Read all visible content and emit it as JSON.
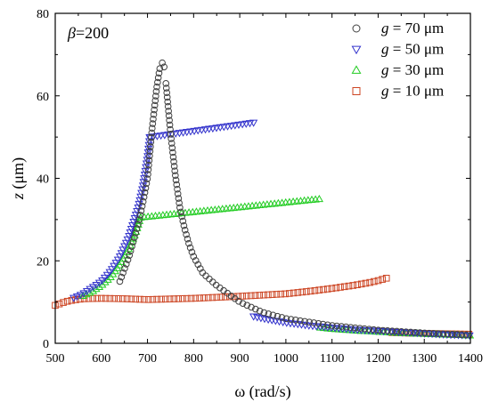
{
  "chart_data": {
    "type": "scatter",
    "annotation": {
      "symbol": "β",
      "text": "=200"
    },
    "xlabel": "ω (rad/s)",
    "ylabel": {
      "var": "z",
      "unit": " (μm)"
    },
    "xlim": [
      500,
      1400
    ],
    "ylim": [
      0,
      80
    ],
    "xticks": [
      500,
      600,
      700,
      800,
      900,
      1000,
      1100,
      1200,
      1300,
      1400
    ],
    "yticks": [
      0,
      20,
      40,
      60,
      80
    ],
    "grid": false,
    "legend_position": "top-right",
    "series": [
      {
        "name": "g = 70 μm",
        "legend_var": "g",
        "legend_rest": " = 70 μm",
        "marker": "circle",
        "color": "#404040",
        "up_branch": {
          "x": [
            640,
            650,
            660,
            670,
            680,
            690,
            700,
            705,
            710,
            715,
            720,
            725,
            728
          ],
          "y": [
            15,
            18,
            21,
            25,
            29,
            34,
            40,
            46,
            52,
            57,
            62,
            65.5,
            67.5
          ]
        },
        "peak": {
          "x": [
            732,
            736
          ],
          "y": [
            68,
            67
          ]
        },
        "down_branch": {
          "x": [
            740,
            745,
            750,
            755,
            760,
            765,
            770,
            780,
            790,
            800,
            820,
            850,
            900,
            950,
            1000,
            1100,
            1200,
            1300,
            1400
          ],
          "y": [
            63,
            57,
            51,
            46,
            41,
            37,
            33,
            28,
            24,
            21,
            17,
            14,
            10,
            7.5,
            6,
            4.3,
            3.2,
            2.5,
            2
          ]
        }
      },
      {
        "name": "g = 50 μm",
        "legend_var": "g",
        "legend_rest": " = 50 μm",
        "marker": "triangle-down",
        "color": "#3333cc",
        "up_branch": {
          "x": [
            540,
            560,
            580,
            600,
            620,
            640,
            660,
            680,
            690,
            700,
            705
          ],
          "y": [
            11,
            12,
            13.5,
            15,
            17.5,
            21,
            26,
            33,
            38,
            45,
            50
          ]
        },
        "upper_branch": {
          "x": [
            705,
            930
          ],
          "y": [
            50,
            53.5
          ]
        },
        "down_branch": {
          "x": [
            930,
            960,
            1000,
            1050,
            1100,
            1150,
            1200,
            1250,
            1300,
            1350,
            1400
          ],
          "y": [
            6.5,
            5.8,
            5,
            4.3,
            3.8,
            3.3,
            3,
            2.7,
            2.4,
            2.1,
            1.9
          ]
        }
      },
      {
        "name": "g = 30 μm",
        "legend_var": "g",
        "legend_rest": " = 30 μm",
        "marker": "triangle-up",
        "color": "#22cc22",
        "up_branch": {
          "x": [
            560,
            580,
            600,
            620,
            640,
            660,
            675,
            685
          ],
          "y": [
            11.5,
            12.5,
            14,
            16,
            19,
            23,
            27,
            30.5
          ]
        },
        "upper_branch": {
          "x": [
            685,
            1075
          ],
          "y": [
            30.5,
            35
          ]
        },
        "down_branch": {
          "x": [
            1075,
            1100,
            1150,
            1200,
            1250,
            1300,
            1350,
            1400
          ],
          "y": [
            3.8,
            3.5,
            3.1,
            2.8,
            2.5,
            2.3,
            2.1,
            1.9
          ]
        }
      },
      {
        "name": "g = 10 μm",
        "legend_var": "g",
        "legend_rest": " = 10 μm",
        "marker": "square",
        "color": "#cc4422",
        "branch": {
          "x": [
            500,
            510,
            520,
            530,
            540,
            560,
            600,
            650,
            700,
            800,
            900,
            1000,
            1050,
            1100,
            1150,
            1180,
            1200,
            1215,
            1225
          ],
          "y": [
            9.2,
            9.6,
            10,
            10.3,
            10.5,
            10.8,
            10.9,
            10.8,
            10.6,
            10.9,
            11.4,
            12,
            12.6,
            13.3,
            14.1,
            14.7,
            15.2,
            15.7,
            16
          ]
        },
        "tail": {
          "x": [
            1230,
            1260,
            1300,
            1350,
            1400
          ],
          "y": [
            2.6,
            2.5,
            2.4,
            2.3,
            2.2
          ]
        }
      }
    ]
  }
}
